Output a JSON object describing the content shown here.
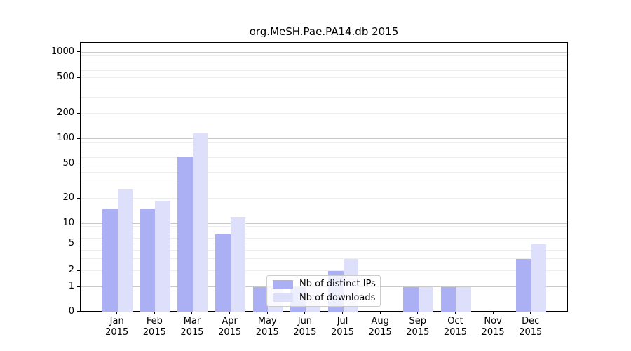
{
  "title": "org.MeSH.Pae.PA14.db 2015",
  "colors": {
    "bar_ips": "#abaff4",
    "bar_downloads": "#dee0fb",
    "grid_major": "#c9c9c9",
    "grid_minor": "#ededed",
    "axis": "#000000",
    "legend_border": "#cccccc"
  },
  "legend": {
    "items": [
      {
        "label": "Nb of distinct IPs",
        "color_key": "bar_ips"
      },
      {
        "label": "Nb of downloads",
        "color_key": "bar_downloads"
      }
    ]
  },
  "chart_data": {
    "type": "bar",
    "title": "org.MeSH.Pae.PA14.db 2015",
    "categories": [
      "Jan 2015",
      "Feb 2015",
      "Mar 2015",
      "Apr 2015",
      "May 2015",
      "Jun 2015",
      "Jul 2015",
      "Aug 2015",
      "Sep 2015",
      "Oct 2015",
      "Nov 2015",
      "Dec 2015"
    ],
    "series": [
      {
        "name": "Nb of distinct IPs",
        "color_key": "bar_ips",
        "values": [
          15,
          15,
          62,
          7,
          1,
          1,
          2,
          0,
          1,
          1,
          0,
          3
        ]
      },
      {
        "name": "Nb of downloads",
        "color_key": "bar_downloads",
        "values": [
          26,
          19,
          120,
          12,
          1,
          1,
          3,
          0,
          1,
          1,
          0,
          5
        ]
      }
    ],
    "xlabel": "",
    "ylabel": "",
    "yscale": "symlog",
    "y_ticks": [
      0,
      1,
      2,
      5,
      10,
      20,
      50,
      100,
      200,
      500,
      1000
    ],
    "ylim": [
      0,
      1300
    ],
    "grid": true,
    "legend_position": "inside-bottom-center"
  }
}
